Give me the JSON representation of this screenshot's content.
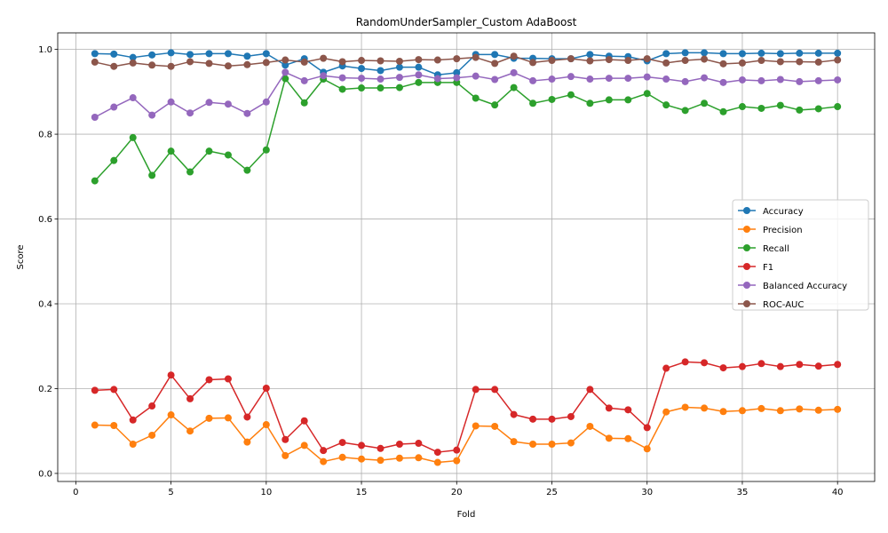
{
  "chart_data": {
    "type": "line",
    "title": "RandomUnderSampler_Custom AdaBoost",
    "xlabel": "Fold",
    "ylabel": "Score",
    "xlim": [
      -0.95,
      41.95
    ],
    "ylim": [
      -0.019,
      1.039
    ],
    "xticks": [
      "0",
      "5",
      "10",
      "15",
      "20",
      "25",
      "30",
      "35",
      "40"
    ],
    "yticks": [
      "0.0",
      "0.2",
      "0.4",
      "0.6",
      "0.8",
      "1.0"
    ],
    "grid": true,
    "legend_position": "center-right",
    "x": [
      1,
      2,
      3,
      4,
      5,
      6,
      7,
      8,
      9,
      10,
      11,
      12,
      13,
      14,
      15,
      16,
      17,
      18,
      19,
      20,
      21,
      22,
      23,
      24,
      25,
      26,
      27,
      28,
      29,
      30,
      31,
      32,
      33,
      34,
      35,
      36,
      37,
      38,
      39,
      40
    ],
    "series": [
      {
        "name": "Accuracy",
        "color": "#1f77b4",
        "values": [
          0.99,
          0.989,
          0.981,
          0.987,
          0.992,
          0.988,
          0.99,
          0.99,
          0.984,
          0.99,
          0.963,
          0.978,
          0.946,
          0.961,
          0.955,
          0.95,
          0.958,
          0.958,
          0.94,
          0.945,
          0.988,
          0.988,
          0.979,
          0.979,
          0.978,
          0.978,
          0.988,
          0.984,
          0.983,
          0.973,
          0.99,
          0.992,
          0.992,
          0.99,
          0.99,
          0.991,
          0.99,
          0.991,
          0.991,
          0.991
        ]
      },
      {
        "name": "Precision",
        "color": "#ff7f0e",
        "values": [
          0.114,
          0.113,
          0.069,
          0.09,
          0.138,
          0.1,
          0.13,
          0.131,
          0.074,
          0.115,
          0.042,
          0.066,
          0.028,
          0.038,
          0.034,
          0.031,
          0.036,
          0.037,
          0.026,
          0.03,
          0.112,
          0.111,
          0.075,
          0.069,
          0.069,
          0.072,
          0.111,
          0.083,
          0.082,
          0.058,
          0.145,
          0.156,
          0.154,
          0.146,
          0.148,
          0.153,
          0.148,
          0.152,
          0.149,
          0.151
        ]
      },
      {
        "name": "Recall",
        "color": "#2ca02c",
        "values": [
          0.69,
          0.738,
          0.792,
          0.703,
          0.76,
          0.711,
          0.76,
          0.751,
          0.715,
          0.763,
          0.931,
          0.874,
          0.93,
          0.906,
          0.909,
          0.909,
          0.91,
          0.922,
          0.922,
          0.922,
          0.885,
          0.869,
          0.91,
          0.873,
          0.882,
          0.893,
          0.873,
          0.881,
          0.881,
          0.896,
          0.869,
          0.856,
          0.873,
          0.853,
          0.865,
          0.861,
          0.868,
          0.857,
          0.86,
          0.865
        ]
      },
      {
        "name": "F1",
        "color": "#d62728",
        "values": [
          0.196,
          0.198,
          0.126,
          0.159,
          0.232,
          0.176,
          0.221,
          0.223,
          0.133,
          0.201,
          0.08,
          0.124,
          0.054,
          0.073,
          0.066,
          0.059,
          0.069,
          0.071,
          0.05,
          0.055,
          0.198,
          0.198,
          0.139,
          0.128,
          0.128,
          0.134,
          0.198,
          0.154,
          0.15,
          0.108,
          0.248,
          0.263,
          0.261,
          0.249,
          0.252,
          0.259,
          0.252,
          0.257,
          0.253,
          0.257
        ]
      },
      {
        "name": "Balanced Accuracy",
        "color": "#9467bd",
        "values": [
          0.84,
          0.864,
          0.886,
          0.845,
          0.876,
          0.85,
          0.875,
          0.871,
          0.849,
          0.876,
          0.946,
          0.926,
          0.938,
          0.933,
          0.932,
          0.93,
          0.934,
          0.94,
          0.931,
          0.933,
          0.937,
          0.929,
          0.945,
          0.926,
          0.93,
          0.936,
          0.93,
          0.932,
          0.932,
          0.935,
          0.93,
          0.924,
          0.933,
          0.922,
          0.928,
          0.926,
          0.929,
          0.924,
          0.926,
          0.928
        ]
      },
      {
        "name": "ROC-AUC",
        "color": "#8c564b",
        "values": [
          0.97,
          0.96,
          0.968,
          0.963,
          0.96,
          0.971,
          0.967,
          0.961,
          0.964,
          0.969,
          0.975,
          0.97,
          0.979,
          0.971,
          0.974,
          0.973,
          0.972,
          0.976,
          0.975,
          0.978,
          0.981,
          0.967,
          0.984,
          0.969,
          0.974,
          0.978,
          0.973,
          0.976,
          0.974,
          0.978,
          0.968,
          0.974,
          0.977,
          0.966,
          0.968,
          0.974,
          0.971,
          0.971,
          0.97,
          0.975
        ]
      }
    ]
  }
}
